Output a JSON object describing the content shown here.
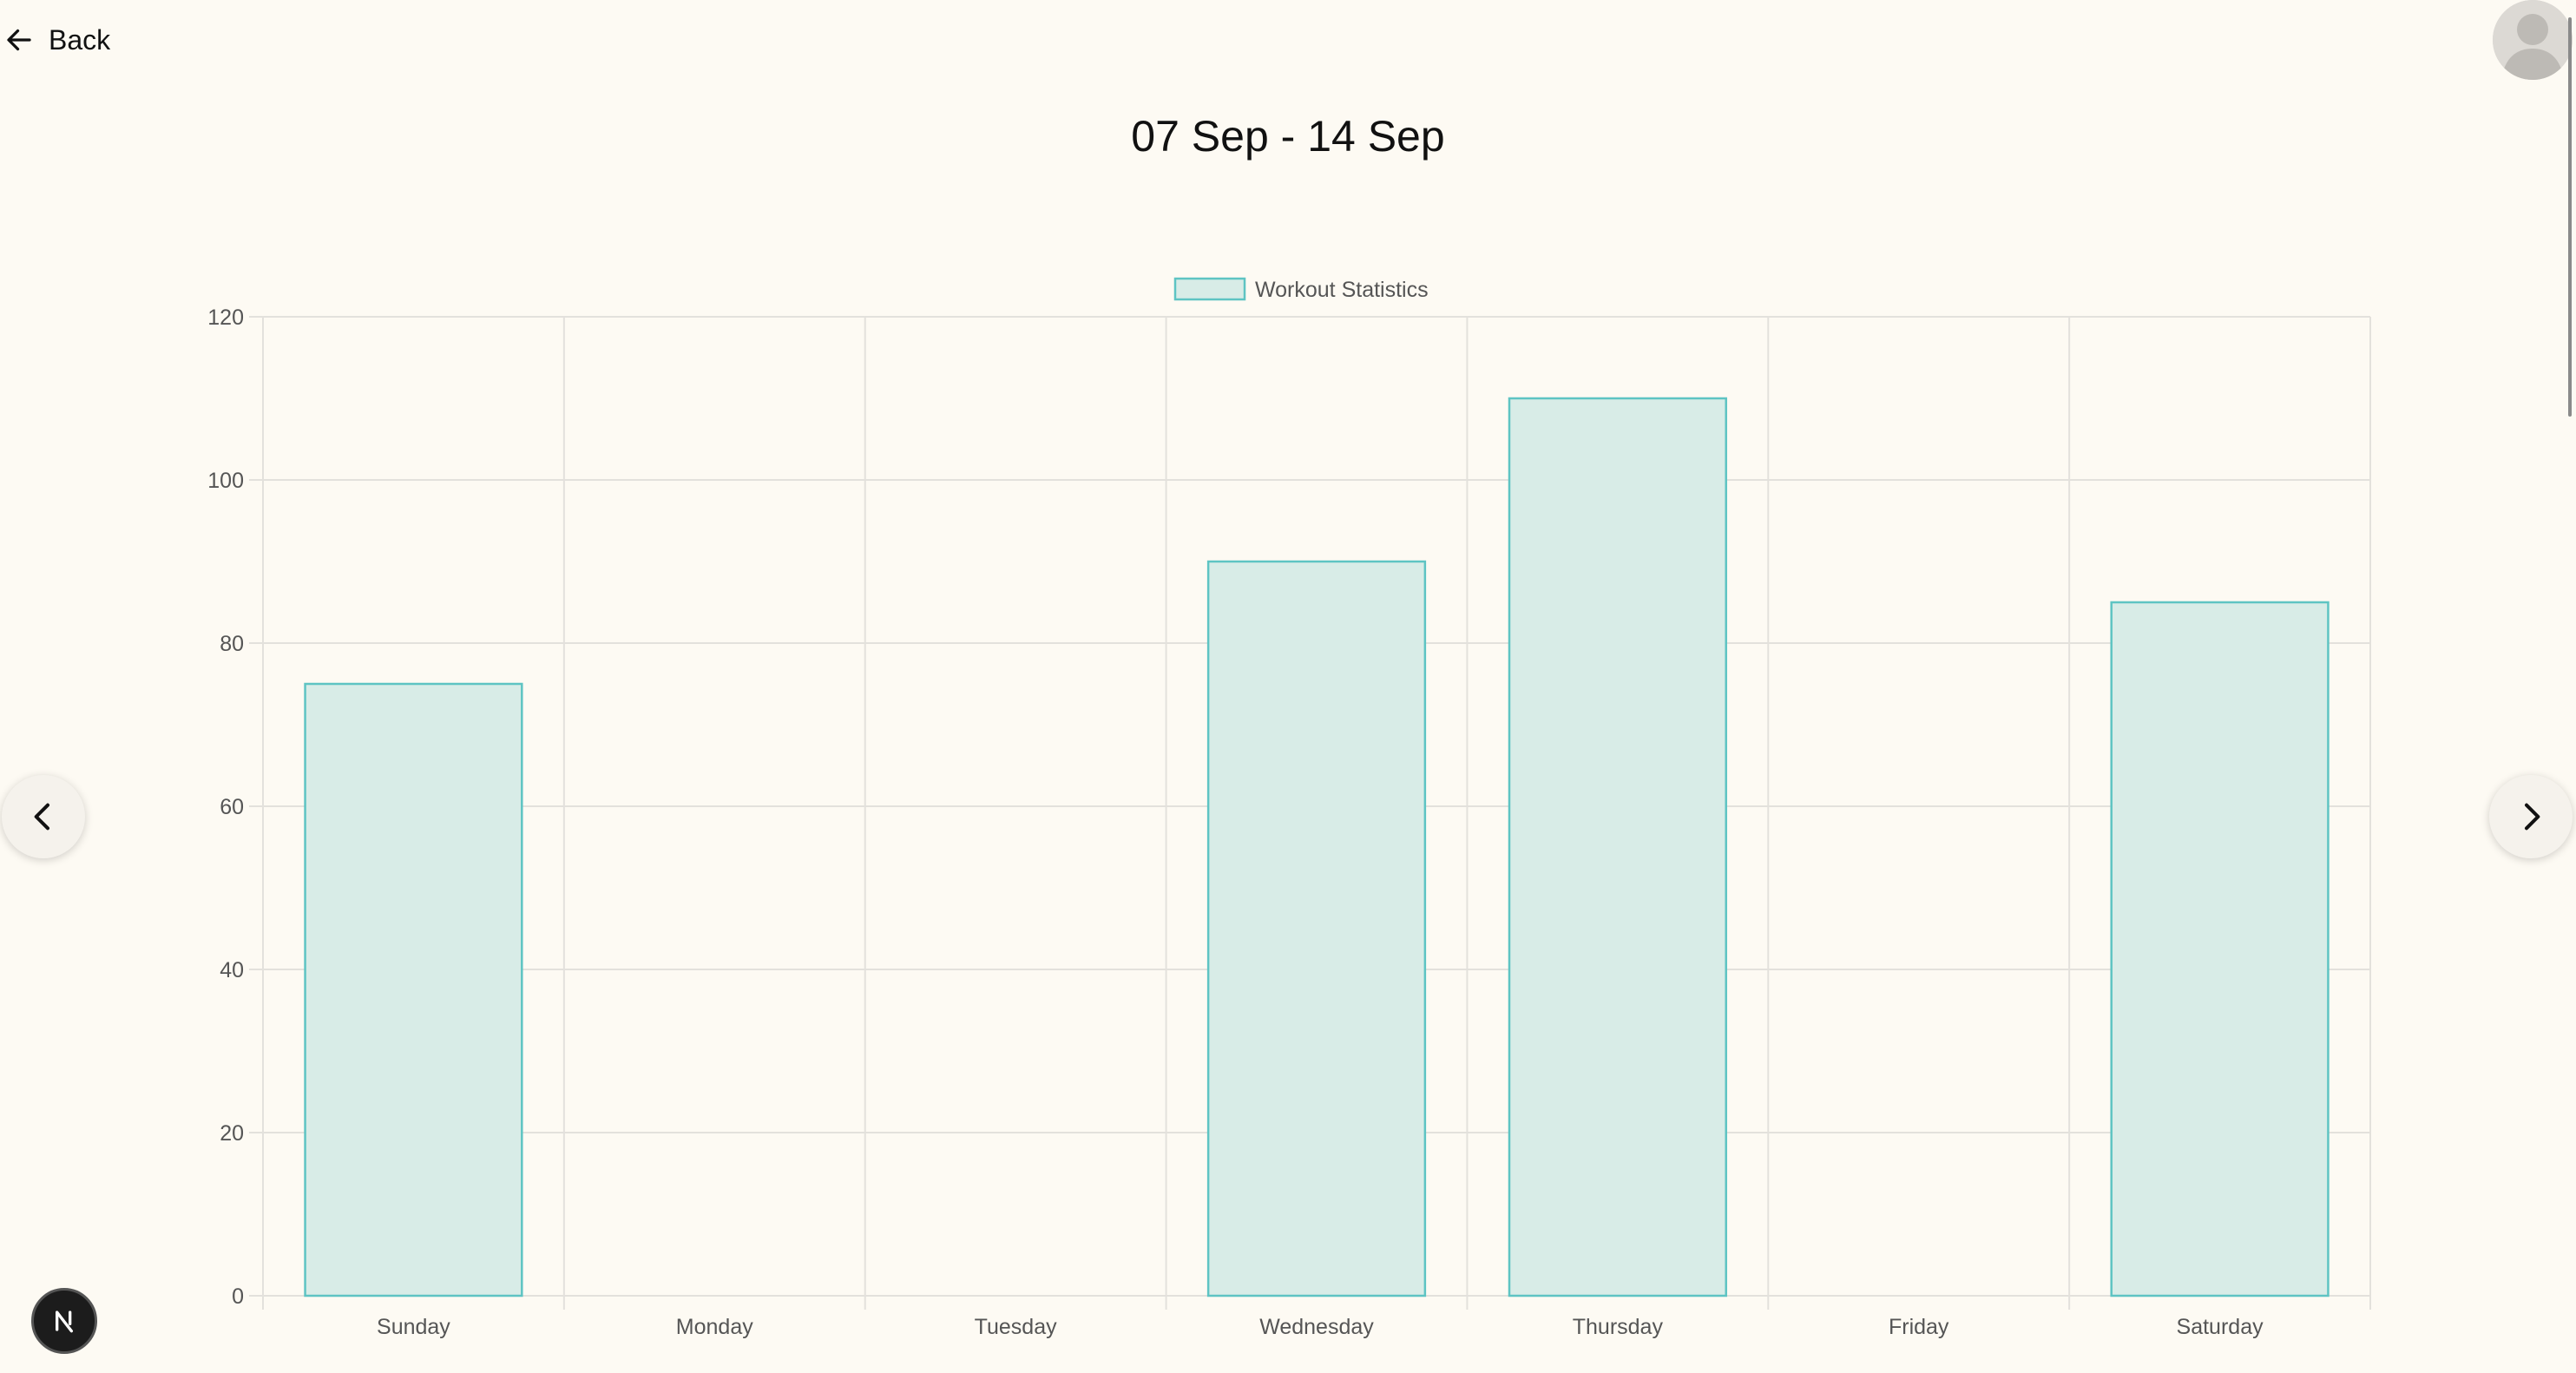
{
  "nav": {
    "back_label": "Back",
    "back_icon": "arrow-left-icon",
    "avatar_icon": "user-avatar-icon",
    "prev_icon": "chevron-left-icon",
    "next_icon": "chevron-right-icon",
    "badge_icon": "nextjs-logo-icon"
  },
  "header": {
    "title": "07 Sep - 14 Sep"
  },
  "colors": {
    "background": "#fdfaf3",
    "bar_fill": "#d8ece7",
    "bar_stroke": "#5ec4c3",
    "grid": "#e3e1dc",
    "axis_text": "#555555"
  },
  "chart_data": {
    "type": "bar",
    "categories": [
      "Sunday",
      "Monday",
      "Tuesday",
      "Wednesday",
      "Thursday",
      "Friday",
      "Saturday"
    ],
    "series": [
      {
        "name": "Workout Statistics",
        "values": [
          75,
          0,
          0,
          90,
          110,
          0,
          85
        ]
      }
    ],
    "ylim": [
      0,
      120
    ],
    "yticks": [
      0,
      20,
      40,
      60,
      80,
      100,
      120
    ],
    "grid": true,
    "legend_position": "top-center"
  }
}
